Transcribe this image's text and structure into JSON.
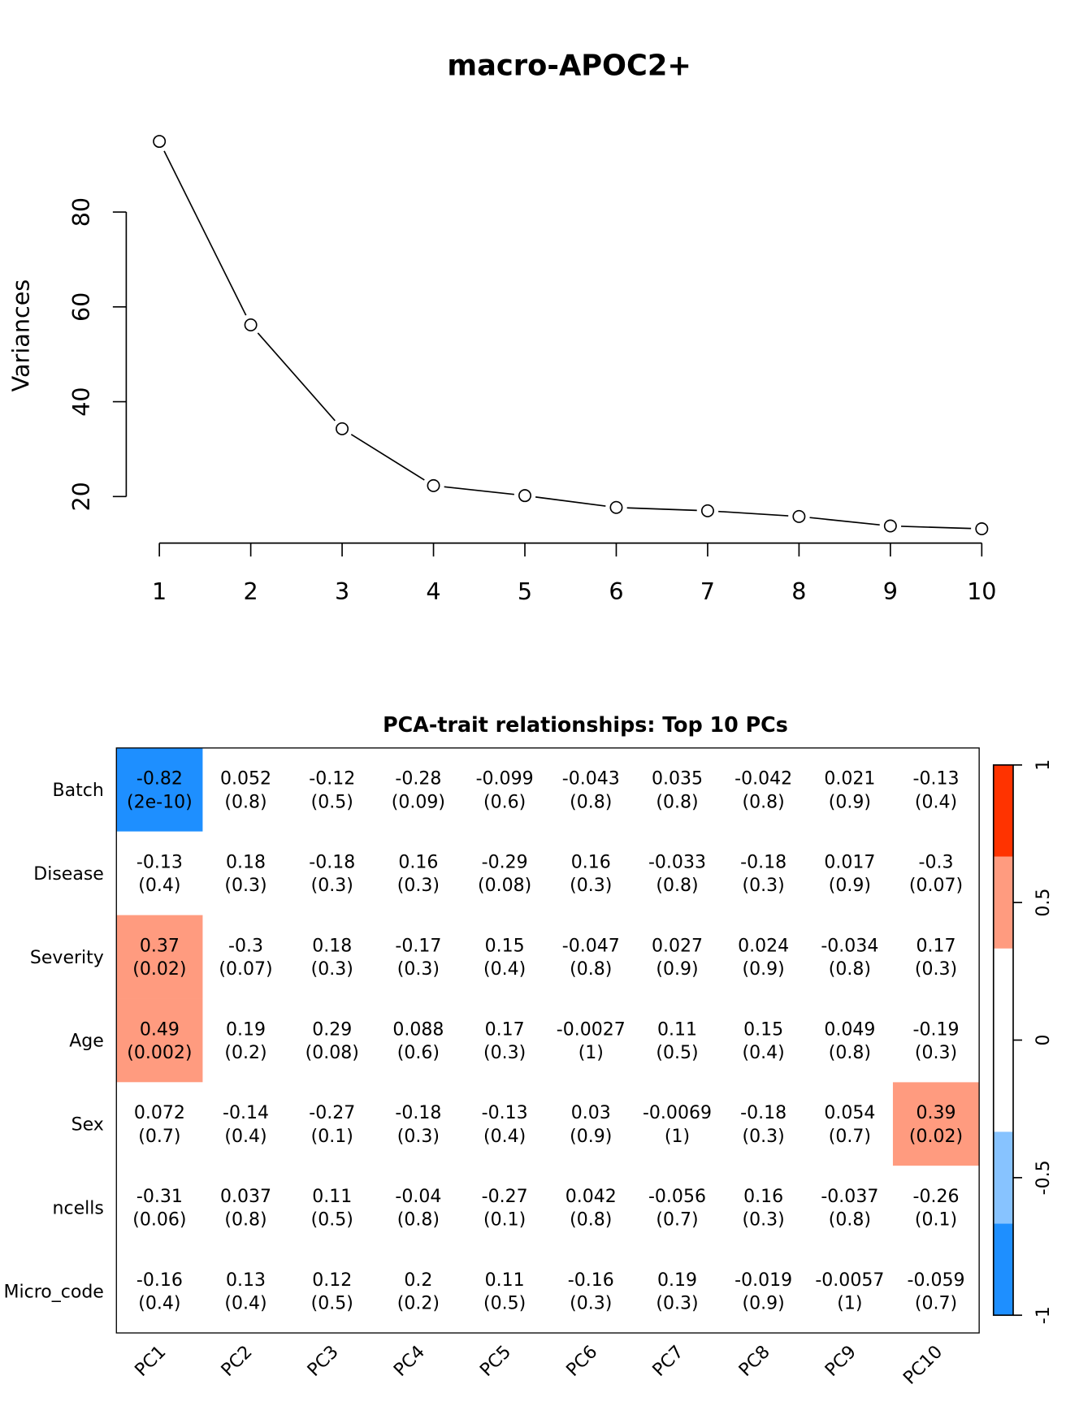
{
  "chart_data": [
    {
      "type": "line",
      "title": "macro-APOC2+",
      "xlabel": "",
      "ylabel": "Variances",
      "x": [
        1,
        2,
        3,
        4,
        5,
        6,
        7,
        8,
        9,
        10
      ],
      "y": [
        94.9,
        56.2,
        34.3,
        22.3,
        20.2,
        17.7,
        17.0,
        15.8,
        13.8,
        13.2
      ],
      "x_ticks": [
        "1",
        "2",
        "3",
        "4",
        "5",
        "6",
        "7",
        "8",
        "9",
        "10"
      ],
      "y_ticks": [
        "20",
        "40",
        "60",
        "80"
      ],
      "markers": "open-circle",
      "grid": false
    },
    {
      "type": "heatmap",
      "title": "PCA-trait relationships: Top 10 PCs",
      "columns": [
        "PC1",
        "PC2",
        "PC3",
        "PC4",
        "PC5",
        "PC6",
        "PC7",
        "PC8",
        "PC9",
        "PC10"
      ],
      "rows": [
        "Batch",
        "Disease",
        "Severity",
        "Age",
        "Sex",
        "ncells",
        "Micro_code"
      ],
      "values": [
        [
          "-0.82",
          "0.052",
          "-0.12",
          "-0.28",
          "-0.099",
          "-0.043",
          "0.035",
          "-0.042",
          "0.021",
          "-0.13"
        ],
        [
          "-0.13",
          "0.18",
          "-0.18",
          "0.16",
          "-0.29",
          "0.16",
          "-0.033",
          "-0.18",
          "0.017",
          "-0.3"
        ],
        [
          "0.37",
          "-0.3",
          "0.18",
          "-0.17",
          "0.15",
          "-0.047",
          "0.027",
          "0.024",
          "-0.034",
          "0.17"
        ],
        [
          "0.49",
          "0.19",
          "0.29",
          "0.088",
          "0.17",
          "-0.0027",
          "0.11",
          "0.15",
          "0.049",
          "-0.19"
        ],
        [
          "0.072",
          "-0.14",
          "-0.27",
          "-0.18",
          "-0.13",
          "0.03",
          "-0.0069",
          "-0.18",
          "0.054",
          "0.39"
        ],
        [
          "-0.31",
          "0.037",
          "0.11",
          "-0.04",
          "-0.27",
          "0.042",
          "-0.056",
          "0.16",
          "-0.037",
          "-0.26"
        ],
        [
          "-0.16",
          "0.13",
          "0.12",
          "0.2",
          "0.11",
          "-0.16",
          "0.19",
          "-0.019",
          "-0.0057",
          "-0.059"
        ]
      ],
      "pvalues": [
        [
          "(2e-10)",
          "(0.8)",
          "(0.5)",
          "(0.09)",
          "(0.6)",
          "(0.8)",
          "(0.8)",
          "(0.8)",
          "(0.9)",
          "(0.4)"
        ],
        [
          "(0.4)",
          "(0.3)",
          "(0.3)",
          "(0.3)",
          "(0.08)",
          "(0.3)",
          "(0.8)",
          "(0.3)",
          "(0.9)",
          "(0.07)"
        ],
        [
          "(0.02)",
          "(0.07)",
          "(0.3)",
          "(0.3)",
          "(0.4)",
          "(0.8)",
          "(0.9)",
          "(0.9)",
          "(0.8)",
          "(0.3)"
        ],
        [
          "(0.002)",
          "(0.2)",
          "(0.08)",
          "(0.6)",
          "(0.3)",
          "(1)",
          "(0.5)",
          "(0.4)",
          "(0.8)",
          "(0.3)"
        ],
        [
          "(0.7)",
          "(0.4)",
          "(0.1)",
          "(0.3)",
          "(0.4)",
          "(0.9)",
          "(1)",
          "(0.3)",
          "(0.7)",
          "(0.02)"
        ],
        [
          "(0.06)",
          "(0.8)",
          "(0.5)",
          "(0.8)",
          "(0.1)",
          "(0.8)",
          "(0.7)",
          "(0.3)",
          "(0.8)",
          "(0.1)"
        ],
        [
          "(0.4)",
          "(0.4)",
          "(0.5)",
          "(0.2)",
          "(0.5)",
          "(0.3)",
          "(0.3)",
          "(0.9)",
          "(1)",
          "(0.7)"
        ]
      ],
      "colorbar": {
        "range": [
          -1,
          1
        ],
        "ticks": [
          "-1",
          "-0.5",
          "0",
          "0.5",
          "1"
        ],
        "bands": [
          {
            "from": -1,
            "to": -0.667,
            "color": "#1E8FFF"
          },
          {
            "from": -0.667,
            "to": -0.333,
            "color": "#87C3FF"
          },
          {
            "from": -0.333,
            "to": 0.333,
            "color": "#FFFFFF"
          },
          {
            "from": 0.333,
            "to": 0.667,
            "color": "#FF9B7F"
          },
          {
            "from": 0.667,
            "to": 1,
            "color": "#FF3300"
          }
        ]
      }
    }
  ]
}
